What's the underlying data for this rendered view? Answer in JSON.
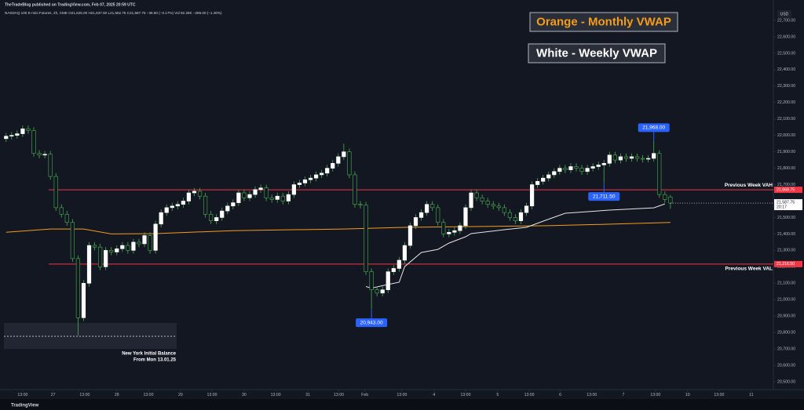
{
  "header": {
    "publisher": "TheTradeBlog published on TradingView.com, Feb 07, 2025 20:59 UTC",
    "symbol": "NASDAQ 100 E-mini Futures, 2h, CME  O21,625.00  H21,637.50  L21,552.75  C21,587.75  −36.50 (−0.17%)  Vol 92.25K  −286.00 (−1.30%)",
    "currency": "USD"
  },
  "footer": {
    "brand": "TradingView"
  },
  "chart_data": {
    "type": "candlestick",
    "bull_color": "#ffffff",
    "bear_color": "#131722",
    "wick_color": "#4caf50",
    "xlim": [
      -1.1,
      138.6
    ],
    "ylim": [
      20450,
      22750
    ],
    "xticks": [
      {
        "value": 3.0,
        "label": "13:00"
      },
      {
        "value": 8.5,
        "label": "27"
      },
      {
        "value": 14.2,
        "label": "13:00"
      },
      {
        "value": 20.0,
        "label": "28"
      },
      {
        "value": 25.7,
        "label": "13:00"
      },
      {
        "value": 31.5,
        "label": "29"
      },
      {
        "value": 37.2,
        "label": "13:00"
      },
      {
        "value": 43.0,
        "label": "30"
      },
      {
        "value": 48.7,
        "label": "13:00"
      },
      {
        "value": 54.5,
        "label": "31"
      },
      {
        "value": 60.1,
        "label": "13:00"
      },
      {
        "value": 64.8,
        "label": "Feb"
      },
      {
        "value": 71.5,
        "label": "13:00"
      },
      {
        "value": 77.3,
        "label": "4"
      },
      {
        "value": 83.0,
        "label": "13:00"
      },
      {
        "value": 88.8,
        "label": "5"
      },
      {
        "value": 94.5,
        "label": "13:00"
      },
      {
        "value": 100.1,
        "label": "6"
      },
      {
        "value": 105.8,
        "label": "13:00"
      },
      {
        "value": 111.5,
        "label": "7"
      },
      {
        "value": 117.3,
        "label": "13:00"
      },
      {
        "value": 123.1,
        "label": "10"
      },
      {
        "value": 128.8,
        "label": "13:00"
      },
      {
        "value": 134.6,
        "label": "11"
      }
    ],
    "yticks": [
      {
        "value": 20500,
        "label": "20,500.00"
      },
      {
        "value": 20600,
        "label": "20,600.00"
      },
      {
        "value": 20700,
        "label": "20,700.00"
      },
      {
        "value": 20800,
        "label": "20,800.00"
      },
      {
        "value": 20900,
        "label": "20,900.00"
      },
      {
        "value": 21000,
        "label": "21,000.00"
      },
      {
        "value": 21100,
        "label": "21,100.00"
      },
      {
        "value": 21200,
        "label": "21,200.00"
      },
      {
        "value": 21300,
        "label": "21,300.00"
      },
      {
        "value": 21400,
        "label": "21,400.00"
      },
      {
        "value": 21500,
        "label": "21,500.00"
      },
      {
        "value": 21600,
        "label": "21,600.00"
      },
      {
        "value": 21700,
        "label": "21,700.00"
      },
      {
        "value": 21800,
        "label": "21,800.00"
      },
      {
        "value": 21900,
        "label": "21,900.00"
      },
      {
        "value": 22000,
        "label": "22,000.00"
      },
      {
        "value": 22100,
        "label": "22,100.00"
      },
      {
        "value": 22200,
        "label": "22,200.00"
      },
      {
        "value": 22300,
        "label": "22,300.00"
      },
      {
        "value": 22400,
        "label": "22,400.00"
      },
      {
        "value": 22500,
        "label": "22,500.00"
      },
      {
        "value": 22600,
        "label": "22,600.00"
      },
      {
        "value": 22700,
        "label": "22,700.00"
      }
    ],
    "ohlc": [
      [
        21980,
        22015,
        21960,
        21995
      ],
      [
        21995,
        22020,
        21975,
        22000
      ],
      [
        22000,
        22030,
        21980,
        22010
      ],
      [
        22010,
        22060,
        21990,
        22040
      ],
      [
        22040,
        22060,
        22010,
        22030
      ],
      [
        22030,
        22050,
        21870,
        21890
      ],
      [
        21890,
        21910,
        21860,
        21880
      ],
      [
        21880,
        21905,
        21860,
        21885
      ],
      [
        21885,
        21905,
        21730,
        21750
      ],
      [
        21750,
        21770,
        21540,
        21560
      ],
      [
        21560,
        21580,
        21500,
        21520
      ],
      [
        21520,
        21540,
        21450,
        21470
      ],
      [
        21470,
        21490,
        21230,
        21250
      ],
      [
        21250,
        21270,
        20782,
        20890
      ],
      [
        20890,
        21120,
        20870,
        21100
      ],
      [
        21100,
        21350,
        21080,
        21330
      ],
      [
        21330,
        21350,
        21300,
        21320
      ],
      [
        21320,
        21340,
        21180,
        21200
      ],
      [
        21200,
        21320,
        21180,
        21300
      ],
      [
        21300,
        21320,
        21270,
        21290
      ],
      [
        21290,
        21330,
        21270,
        21310
      ],
      [
        21310,
        21350,
        21290,
        21330
      ],
      [
        21330,
        21350,
        21280,
        21300
      ],
      [
        21300,
        21370,
        21280,
        21350
      ],
      [
        21350,
        21370,
        21320,
        21340
      ],
      [
        21340,
        21410,
        21320,
        21390
      ],
      [
        21390,
        21410,
        21280,
        21300
      ],
      [
        21300,
        21480,
        21280,
        21460
      ],
      [
        21460,
        21550,
        21440,
        21530
      ],
      [
        21530,
        21580,
        21510,
        21560
      ],
      [
        21560,
        21590,
        21540,
        21570
      ],
      [
        21570,
        21600,
        21550,
        21580
      ],
      [
        21580,
        21620,
        21560,
        21600
      ],
      [
        21600,
        21670,
        21580,
        21650
      ],
      [
        21650,
        21680,
        21630,
        21660
      ],
      [
        21660,
        21680,
        21610,
        21630
      ],
      [
        21630,
        21650,
        21500,
        21520
      ],
      [
        21520,
        21540,
        21460,
        21480
      ],
      [
        21480,
        21520,
        21460,
        21500
      ],
      [
        21500,
        21560,
        21480,
        21540
      ],
      [
        21540,
        21590,
        21520,
        21570
      ],
      [
        21570,
        21610,
        21550,
        21590
      ],
      [
        21590,
        21670,
        21570,
        21650
      ],
      [
        21650,
        21670,
        21600,
        21620
      ],
      [
        21620,
        21660,
        21600,
        21640
      ],
      [
        21640,
        21690,
        21620,
        21670
      ],
      [
        21670,
        21700,
        21650,
        21680
      ],
      [
        21680,
        21700,
        21600,
        21620
      ],
      [
        21620,
        21640,
        21590,
        21610
      ],
      [
        21610,
        21650,
        21590,
        21630
      ],
      [
        21630,
        21650,
        21580,
        21600
      ],
      [
        21600,
        21660,
        21580,
        21640
      ],
      [
        21640,
        21720,
        21620,
        21700
      ],
      [
        21700,
        21730,
        21680,
        21710
      ],
      [
        21710,
        21750,
        21690,
        21730
      ],
      [
        21730,
        21760,
        21710,
        21740
      ],
      [
        21740,
        21780,
        21720,
        21760
      ],
      [
        21760,
        21790,
        21740,
        21770
      ],
      [
        21770,
        21820,
        21750,
        21800
      ],
      [
        21800,
        21850,
        21780,
        21830
      ],
      [
        21830,
        21890,
        21810,
        21870
      ],
      [
        21870,
        21950,
        21850,
        21900
      ],
      [
        21900,
        21920,
        21740,
        21760
      ],
      [
        21760,
        21780,
        21560,
        21580
      ],
      [
        21580,
        21600,
        21555,
        21575
      ],
      [
        21575,
        21595,
        21150,
        21170
      ],
      [
        21170,
        21190,
        20943,
        21060
      ],
      [
        21060,
        21080,
        21020,
        21040
      ],
      [
        21040,
        21080,
        21020,
        21060
      ],
      [
        21060,
        21190,
        21040,
        21170
      ],
      [
        21170,
        21210,
        21150,
        21190
      ],
      [
        21190,
        21260,
        21170,
        21240
      ],
      [
        21240,
        21350,
        21220,
        21330
      ],
      [
        21330,
        21470,
        21310,
        21450
      ],
      [
        21450,
        21520,
        21430,
        21500
      ],
      [
        21500,
        21550,
        21480,
        21530
      ],
      [
        21530,
        21600,
        21510,
        21580
      ],
      [
        21580,
        21600,
        21540,
        21560
      ],
      [
        21560,
        21580,
        21450,
        21470
      ],
      [
        21470,
        21490,
        21380,
        21400
      ],
      [
        21400,
        21430,
        21380,
        21410
      ],
      [
        21410,
        21440,
        21390,
        21420
      ],
      [
        21420,
        21470,
        21400,
        21450
      ],
      [
        21450,
        21580,
        21430,
        21560
      ],
      [
        21560,
        21670,
        21540,
        21650
      ],
      [
        21650,
        21670,
        21600,
        21620
      ],
      [
        21620,
        21640,
        21580,
        21600
      ],
      [
        21600,
        21620,
        21560,
        21580
      ],
      [
        21580,
        21600,
        21550,
        21570
      ],
      [
        21570,
        21590,
        21540,
        21560
      ],
      [
        21560,
        21580,
        21510,
        21530
      ],
      [
        21530,
        21550,
        21480,
        21500
      ],
      [
        21500,
        21520,
        21460,
        21480
      ],
      [
        21480,
        21550,
        21460,
        21530
      ],
      [
        21530,
        21590,
        21510,
        21570
      ],
      [
        21570,
        21720,
        21550,
        21700
      ],
      [
        21700,
        21740,
        21680,
        21720
      ],
      [
        21720,
        21760,
        21700,
        21740
      ],
      [
        21740,
        21780,
        21720,
        21760
      ],
      [
        21760,
        21800,
        21740,
        21780
      ],
      [
        21780,
        21820,
        21760,
        21800
      ],
      [
        21800,
        21820,
        21770,
        21790
      ],
      [
        21790,
        21830,
        21770,
        21810
      ],
      [
        21810,
        21830,
        21780,
        21800
      ],
      [
        21800,
        21820,
        21760,
        21780
      ],
      [
        21780,
        21820,
        21760,
        21800
      ],
      [
        21800,
        21830,
        21780,
        21810
      ],
      [
        21810,
        21840,
        21790,
        21820
      ],
      [
        21820,
        21850,
        21711.5,
        21830
      ],
      [
        21830,
        21900,
        21810,
        21880
      ],
      [
        21880,
        21900,
        21830,
        21850
      ],
      [
        21850,
        21890,
        21830,
        21870
      ],
      [
        21870,
        21890,
        21840,
        21860
      ],
      [
        21860,
        21890,
        21840,
        21870
      ],
      [
        21870,
        21890,
        21840,
        21860
      ],
      [
        21860,
        21880,
        21835,
        21855
      ],
      [
        21855,
        21880,
        21835,
        21860
      ],
      [
        21860,
        21968,
        21840,
        21890
      ],
      [
        21890,
        21910,
        21620,
        21640
      ],
      [
        21640,
        21660,
        21590,
        21610
      ],
      [
        21625,
        21637.5,
        21552.75,
        21587.75
      ]
    ],
    "lines": [
      {
        "color": "#f59c1a",
        "x": [
          0,
          8,
          14,
          19,
          27,
          41,
          61,
          72,
          98,
          110,
          120
        ],
        "values": [
          21410,
          21430,
          21430,
          21400,
          21402,
          21420,
          21430,
          21440,
          21450,
          21460,
          21470
        ]
      },
      {
        "color": "#e6e6e6",
        "x": [
          65,
          66,
          68,
          71,
          72,
          75,
          78,
          80,
          83,
          84,
          90,
          94,
          97,
          101,
          109,
          117,
          119
        ],
        "values": [
          21080,
          21070,
          21085,
          21106,
          21201,
          21287,
          21306,
          21344,
          21383,
          21402,
          21426,
          21440,
          21478,
          21526,
          21545,
          21559,
          21583
        ]
      }
    ],
    "levels": [
      {
        "name": "Previous Week VAH",
        "value": 21668.75,
        "price_label": "21,668.75",
        "color": "#f23645"
      },
      {
        "name": "Previous Week VAL",
        "value": 21216.5,
        "price_label": "21,216.50",
        "color": "#f23645"
      }
    ],
    "price_marks": [
      {
        "x": 117,
        "value": 21968,
        "label": "21,968.00",
        "side": "above"
      },
      {
        "x": 108,
        "value": 21711.5,
        "label": "21,711.50",
        "side": "below"
      },
      {
        "x": 66,
        "value": 20943,
        "label": "20,943.00",
        "side": "below"
      }
    ],
    "last_price": {
      "value": 21587.75,
      "label": "21,587.75",
      "countdown": "20:17"
    },
    "notes": [
      {
        "text": "Orange - Monthly VWAP",
        "color": "#f59c1a"
      },
      {
        "text": "White - Weekly VWAP",
        "color": "#ffffff"
      }
    ],
    "session_box": {
      "line1": "New York Initial Balance",
      "line2": "From Mon 13.01.25"
    }
  }
}
